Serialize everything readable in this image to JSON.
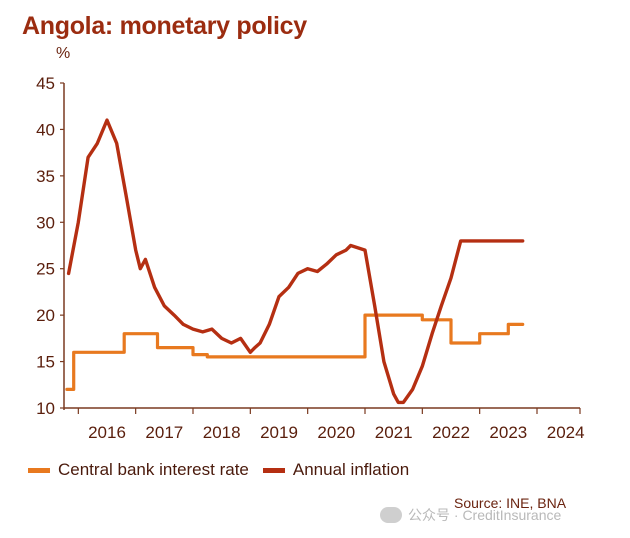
{
  "title": "Angola: monetary policy",
  "unit_label": "%",
  "source": "Source: INE, BNA",
  "watermark": "公众号 · CreditInsurance",
  "colors": {
    "rate": "#e8791f",
    "inflation": "#b52f12",
    "axis": "#7a3a20",
    "title": "#9b2c10"
  },
  "chart_data": {
    "type": "line",
    "title": "Angola: monetary policy",
    "ylabel": "%",
    "xlabel": "",
    "ylim": [
      10,
      45
    ],
    "xlim": [
      2015.25,
      2024.25
    ],
    "yticks": [
      10,
      15,
      20,
      25,
      30,
      35,
      40,
      45
    ],
    "xtick_labels": [
      "2016",
      "2017",
      "2018",
      "2019",
      "2020",
      "2021",
      "2022",
      "2023",
      "2024"
    ],
    "grid": false,
    "legend": "bottom",
    "series": [
      {
        "name": "Central bank interest rate",
        "color": "#e8791f",
        "x": [
          2015.3,
          2015.42,
          2015.42,
          2015.5,
          2015.5,
          2016.3,
          2016.3,
          2016.88,
          2016.88,
          2017.08,
          2017.08,
          2017.5,
          2017.5,
          2017.75,
          2017.75,
          2018.0,
          2018.0,
          2018.5,
          2018.5,
          2020.5,
          2020.5,
          2021.0,
          2021.0,
          2021.5,
          2021.5,
          2022.0,
          2022.0,
          2022.5,
          2022.5,
          2023.0,
          2023.0,
          2023.25
        ],
        "y": [
          12,
          12,
          16,
          16,
          16,
          16,
          18,
          18,
          16.5,
          16.5,
          16.5,
          16.5,
          15.75,
          15.75,
          15.5,
          15.5,
          15.5,
          15.5,
          15.5,
          15.5,
          20,
          20,
          20,
          20,
          19.5,
          19.5,
          17,
          17,
          18,
          18,
          19,
          19
        ]
      },
      {
        "name": "Annual inflation",
        "color": "#b52f12",
        "x": [
          2015.33,
          2015.5,
          2015.67,
          2015.83,
          2016.0,
          2016.17,
          2016.33,
          2016.5,
          2016.58,
          2016.67,
          2016.83,
          2017.0,
          2017.17,
          2017.33,
          2017.5,
          2017.67,
          2017.83,
          2018.0,
          2018.17,
          2018.33,
          2018.5,
          2018.58,
          2018.67,
          2018.83,
          2019.0,
          2019.17,
          2019.33,
          2019.5,
          2019.67,
          2019.83,
          2020.0,
          2020.17,
          2020.25,
          2020.5,
          2020.67,
          2020.83,
          2021.0,
          2021.08,
          2021.17,
          2021.33,
          2021.5,
          2021.67,
          2021.83,
          2022.0,
          2022.17,
          2022.33,
          2022.5,
          2022.58,
          2022.67,
          2022.83,
          2023.0,
          2023.17,
          2023.25
        ],
        "y": [
          24.5,
          30,
          37,
          38.5,
          41,
          38.5,
          33,
          27,
          25,
          26,
          23,
          21,
          20,
          19,
          18.5,
          18.2,
          18.5,
          17.5,
          17,
          17.5,
          16,
          16.5,
          17,
          19,
          22,
          23,
          24.5,
          25,
          24.7,
          25.5,
          26.5,
          27,
          27.5,
          27,
          21,
          15,
          11.5,
          10.6,
          10.6,
          12,
          14.5,
          18,
          21,
          24,
          28,
          28,
          28,
          28,
          28,
          28,
          28,
          28,
          28
        ]
      }
    ]
  }
}
